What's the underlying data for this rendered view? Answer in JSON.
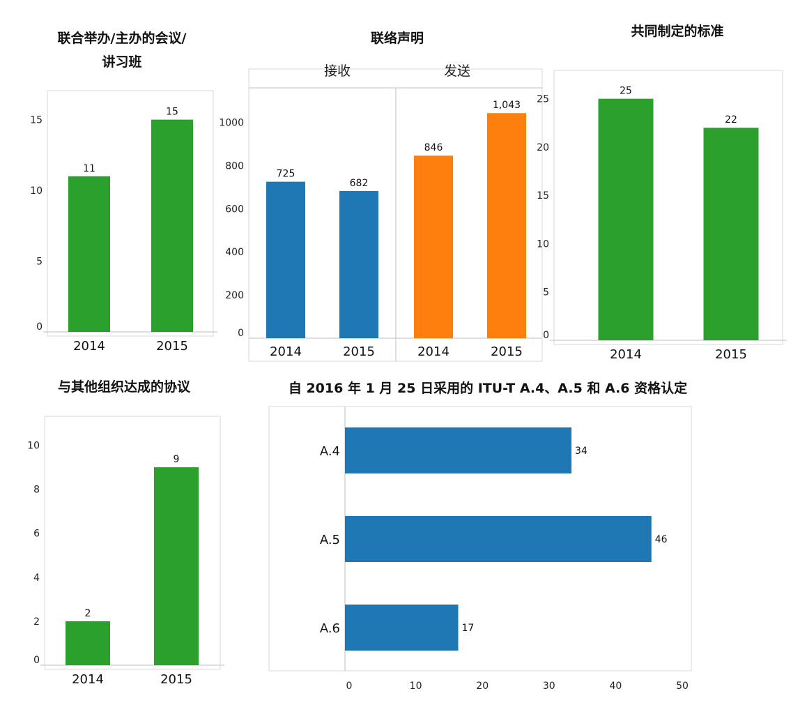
{
  "chart_data": [
    {
      "type": "bar",
      "title_lines": [
        "联合举办/主办的会议/",
        "讲习班"
      ],
      "categories": [
        "2014",
        "2015"
      ],
      "values": [
        11,
        15
      ],
      "value_labels": [
        "11",
        "15"
      ],
      "yticks": [
        "0",
        "5",
        "10",
        "15"
      ],
      "ylim": [
        0,
        17
      ],
      "color": "#2ca02c"
    },
    {
      "type": "bar",
      "title_lines": [
        "联络声明"
      ],
      "panels": [
        {
          "name": "接收",
          "categories": [
            "2014",
            "2015"
          ],
          "values": [
            725,
            682
          ],
          "value_labels": [
            "725",
            "682"
          ],
          "color": "#1f77b4"
        },
        {
          "name": "发送",
          "categories": [
            "2014",
            "2015"
          ],
          "values": [
            846,
            1043
          ],
          "value_labels": [
            "846",
            "1,043"
          ],
          "color": "#ff7f0e"
        }
      ],
      "yticks": [
        "0",
        "200",
        "400",
        "600",
        "800",
        "1000"
      ],
      "ylim": [
        0,
        1160
      ]
    },
    {
      "type": "bar",
      "title_lines": [
        "共同制定的标准"
      ],
      "categories": [
        "2014",
        "2015"
      ],
      "values": [
        25,
        22
      ],
      "value_labels": [
        "25",
        "22"
      ],
      "yticks": [
        "0",
        "5",
        "10",
        "15",
        "20",
        "25"
      ],
      "ylim": [
        0,
        27.5
      ],
      "color": "#2ca02c"
    },
    {
      "type": "bar",
      "title_lines": [
        "与其他组织达成的协议"
      ],
      "categories": [
        "2014",
        "2015"
      ],
      "values": [
        2,
        9
      ],
      "value_labels": [
        "2",
        "9"
      ],
      "yticks": [
        "0",
        "2",
        "4",
        "6",
        "8",
        "10"
      ],
      "ylim": [
        0,
        11
      ],
      "color": "#2ca02c"
    },
    {
      "type": "bar",
      "orientation": "horizontal",
      "title_lines": [
        "自 2016 年 1 月 25 日采用的 ITU-T A.4、A.5 和 A.6 资格认定"
      ],
      "categories": [
        "A.4",
        "A.5",
        "A.6"
      ],
      "values": [
        34,
        46,
        17
      ],
      "value_labels": [
        "34",
        "46",
        "17"
      ],
      "xticks": [
        "0",
        "10",
        "20",
        "30",
        "40",
        "50"
      ],
      "xlim": [
        0,
        52
      ],
      "color": "#1f77b4"
    }
  ]
}
